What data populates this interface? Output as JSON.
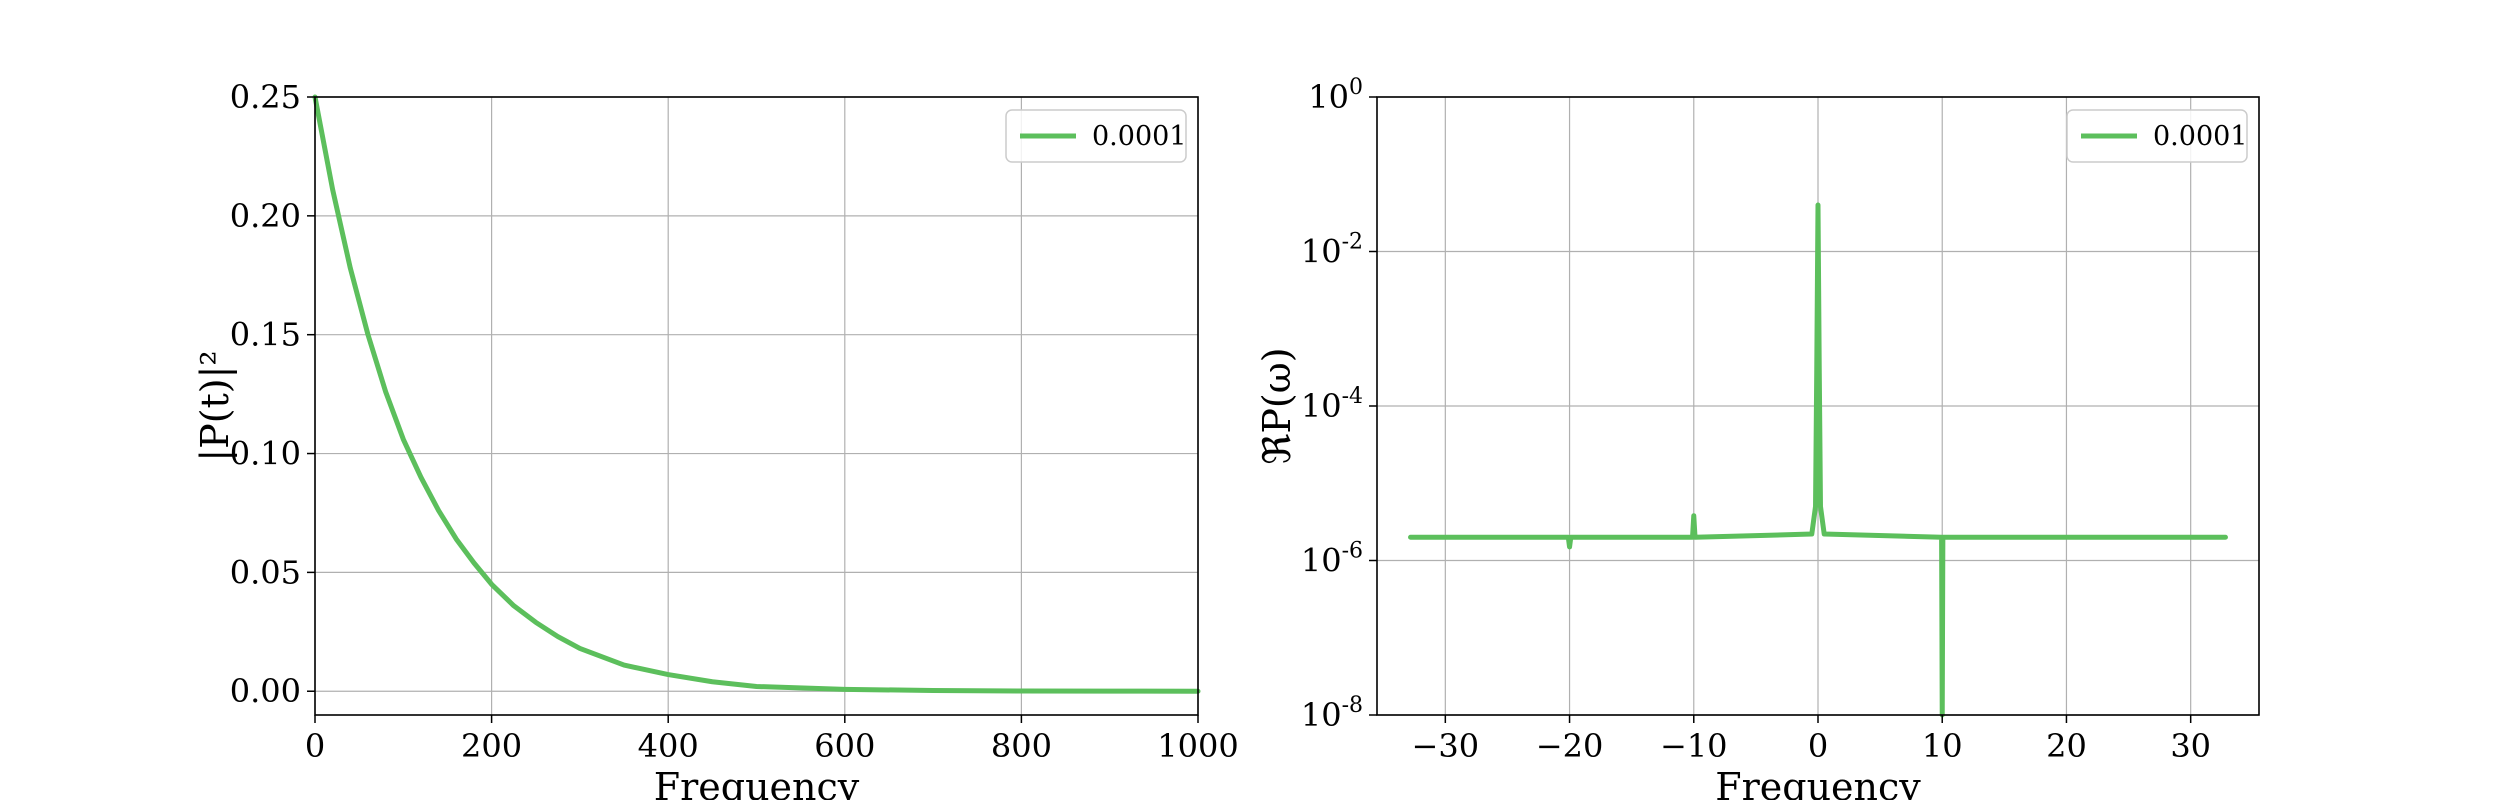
{
  "chart_data": [
    {
      "type": "line",
      "xlabel": "Frequency",
      "ylabel": "|P(t)|²",
      "xlim": [
        0,
        1000
      ],
      "ylim": [
        -0.01,
        0.25
      ],
      "xticks": [
        0,
        200,
        400,
        600,
        800,
        1000
      ],
      "xtick_labels": [
        "0",
        "200",
        "400",
        "600",
        "800",
        "1000"
      ],
      "yticks": [
        0.0,
        0.05,
        0.1,
        0.15,
        0.2,
        0.25
      ],
      "ytick_labels": [
        "0.00",
        "0.05",
        "0.10",
        "0.15",
        "0.20",
        "0.25"
      ],
      "grid": true,
      "legend_position": "top-right",
      "series": [
        {
          "name": "0.0001",
          "color": "#5cbf5c",
          "x": [
            0,
            20,
            40,
            60,
            80,
            100,
            120,
            140,
            160,
            180,
            200,
            225,
            250,
            275,
            300,
            350,
            400,
            450,
            500,
            600,
            700,
            800,
            900,
            1000
          ],
          "y": [
            0.25,
            0.211,
            0.178,
            0.15,
            0.126,
            0.106,
            0.09,
            0.076,
            0.064,
            0.054,
            0.045,
            0.036,
            0.029,
            0.023,
            0.018,
            0.011,
            0.007,
            0.004,
            0.002,
            0.0008,
            0.0003,
            0.0001,
            5e-05,
            0.0
          ]
        }
      ]
    },
    {
      "type": "line",
      "xlabel": "Frequency",
      "ylabel": "ℜP(ω)",
      "xlim": [
        -35.5,
        35.5
      ],
      "ylim": [
        1e-08,
        1
      ],
      "yscale": "log",
      "xticks": [
        -30,
        -20,
        -10,
        0,
        10,
        20,
        30
      ],
      "xtick_labels": [
        "−30",
        "−20",
        "−10",
        "0",
        "10",
        "20",
        "30"
      ],
      "yticks": [
        1e-08,
        1e-06,
        0.0001,
        0.01,
        1
      ],
      "ytick_labels": [
        {
          "base": "10",
          "exp": "-8"
        },
        {
          "base": "10",
          "exp": "-6"
        },
        {
          "base": "10",
          "exp": "-4"
        },
        {
          "base": "10",
          "exp": "-2"
        },
        {
          "base": "10",
          "exp": "0"
        }
      ],
      "grid": true,
      "legend_position": "top-right",
      "series": [
        {
          "name": "0.0001",
          "color": "#5cbf5c",
          "x": [
            -32.8,
            -20.1,
            -20.0,
            -19.9,
            -10.1,
            -10.0,
            -9.9,
            -0.5,
            -0.2,
            -0.1,
            0.0,
            0.1,
            0.2,
            0.5,
            9.95,
            10.0,
            10.05,
            32.8
          ],
          "y": [
            2e-06,
            2e-06,
            1.5e-06,
            2e-06,
            2e-06,
            3.8e-06,
            2e-06,
            2.2e-06,
            5e-06,
            0.0003,
            0.04,
            0.0003,
            5e-06,
            2.2e-06,
            2e-06,
            1e-08,
            2e-06,
            2e-06
          ]
        }
      ]
    }
  ]
}
